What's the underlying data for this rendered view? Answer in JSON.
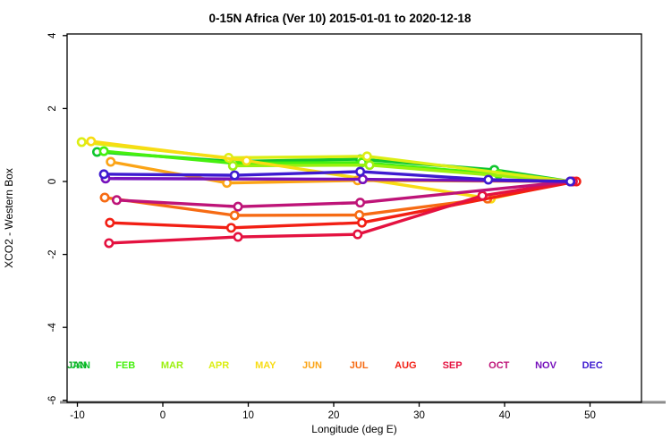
{
  "title": "0-15N Africa (Ver 10)   2015-01-01 to 2020-12-18",
  "chart_data": {
    "type": "line",
    "title": "0-15N Africa (Ver 10)   2015-01-01 to 2020-12-18",
    "xlabel": "Longitude (deg E)",
    "ylabel": "XCO2 - Western Box",
    "xlim": [
      -11.2,
      56.0
    ],
    "ylim": [
      -6.05,
      4.05
    ],
    "xticks": [
      -10,
      0,
      10,
      20,
      30,
      40,
      50
    ],
    "yticks": [
      4,
      2,
      0,
      -2,
      -4,
      -6
    ],
    "grid": false,
    "marker": "open-circle",
    "legend_position": "inside-bottom-row",
    "baseline_color": "#8C8C8C",
    "months": [
      {
        "label": "JAN",
        "color": "#0FC62E",
        "double_print": true,
        "shadow_color": "#0A9E22"
      },
      {
        "label": "FEB",
        "color": "#46F00F",
        "double_print": false
      },
      {
        "label": "MAR",
        "color": "#9CF00F",
        "double_print": false
      },
      {
        "label": "APR",
        "color": "#DCEE14",
        "double_print": false
      },
      {
        "label": "MAY",
        "color": "#F8DC14",
        "double_print": false
      },
      {
        "label": "JUN",
        "color": "#FBA416",
        "double_print": false
      },
      {
        "label": "JUL",
        "color": "#F66B14",
        "double_print": false
      },
      {
        "label": "AUG",
        "color": "#F21F14",
        "double_print": false
      },
      {
        "label": "SEP",
        "color": "#E41240",
        "double_print": false
      },
      {
        "label": "OCT",
        "color": "#BE1478",
        "double_print": false
      },
      {
        "label": "NOV",
        "color": "#7712BC",
        "double_print": false
      },
      {
        "label": "DEC",
        "color": "#3E1BD0",
        "double_print": false
      }
    ],
    "series": [
      {
        "name": "JAN",
        "color": "#0FC62E",
        "points": [
          [
            -7.7,
            0.81
          ],
          [
            8.1,
            0.55
          ],
          [
            23.1,
            0.61
          ],
          [
            38.8,
            0.32
          ],
          [
            47.7,
            0
          ]
        ]
      },
      {
        "name": "FEB",
        "color": "#46F00F",
        "points": [
          [
            -6.9,
            0.83
          ],
          [
            8.3,
            0.5
          ],
          [
            23.3,
            0.52
          ],
          [
            39.3,
            0.2
          ],
          [
            47.7,
            0
          ]
        ]
      },
      {
        "name": "MAR",
        "color": "#9CF00F",
        "points": [
          [
            8.2,
            0.43
          ],
          [
            24.2,
            0.45
          ],
          [
            47.7,
            0
          ]
        ]
      },
      {
        "name": "APR",
        "color": "#DCEE14",
        "points": [
          [
            -9.5,
            1.08
          ],
          [
            7.7,
            0.65
          ],
          [
            23.9,
            0.69
          ],
          [
            47.7,
            0
          ]
        ]
      },
      {
        "name": "MAY",
        "color": "#F8DC14",
        "points": [
          [
            -8.4,
            1.1
          ],
          [
            9.8,
            0.57
          ],
          [
            38.4,
            -0.47
          ],
          [
            47.7,
            0
          ]
        ]
      },
      {
        "name": "JUN",
        "color": "#FBA416",
        "points": [
          [
            -6.1,
            0.54
          ],
          [
            7.5,
            -0.04
          ],
          [
            22.8,
            0.03
          ],
          [
            47.7,
            0
          ]
        ]
      },
      {
        "name": "JUL",
        "color": "#F66B14",
        "points": [
          [
            -6.8,
            -0.44
          ],
          [
            8.4,
            -0.93
          ],
          [
            23.0,
            -0.92
          ],
          [
            38.0,
            -0.47
          ],
          [
            47.7,
            0
          ]
        ]
      },
      {
        "name": "AUG",
        "color": "#F21F14",
        "points": [
          [
            -6.2,
            -1.13
          ],
          [
            8.0,
            -1.27
          ],
          [
            23.3,
            -1.13
          ],
          [
            48.4,
            0
          ]
        ]
      },
      {
        "name": "SEP",
        "color": "#E41240",
        "points": [
          [
            -6.3,
            -1.69
          ],
          [
            8.8,
            -1.52
          ],
          [
            22.8,
            -1.45
          ],
          [
            37.4,
            -0.39
          ],
          [
            48.0,
            0
          ]
        ]
      },
      {
        "name": "OCT",
        "color": "#BE1478",
        "points": [
          [
            -5.4,
            -0.51
          ],
          [
            8.8,
            -0.69
          ],
          [
            23.1,
            -0.58
          ],
          [
            47.7,
            0
          ]
        ]
      },
      {
        "name": "NOV",
        "color": "#7712BC",
        "points": [
          [
            -6.7,
            0.08
          ],
          [
            23.4,
            0.06
          ],
          [
            47.7,
            0
          ]
        ]
      },
      {
        "name": "DEC",
        "color": "#3E1BD0",
        "points": [
          [
            -6.9,
            0.2
          ],
          [
            8.4,
            0.17
          ],
          [
            23.1,
            0.27
          ],
          [
            38.1,
            0.05
          ],
          [
            47.7,
            0
          ]
        ]
      }
    ]
  }
}
